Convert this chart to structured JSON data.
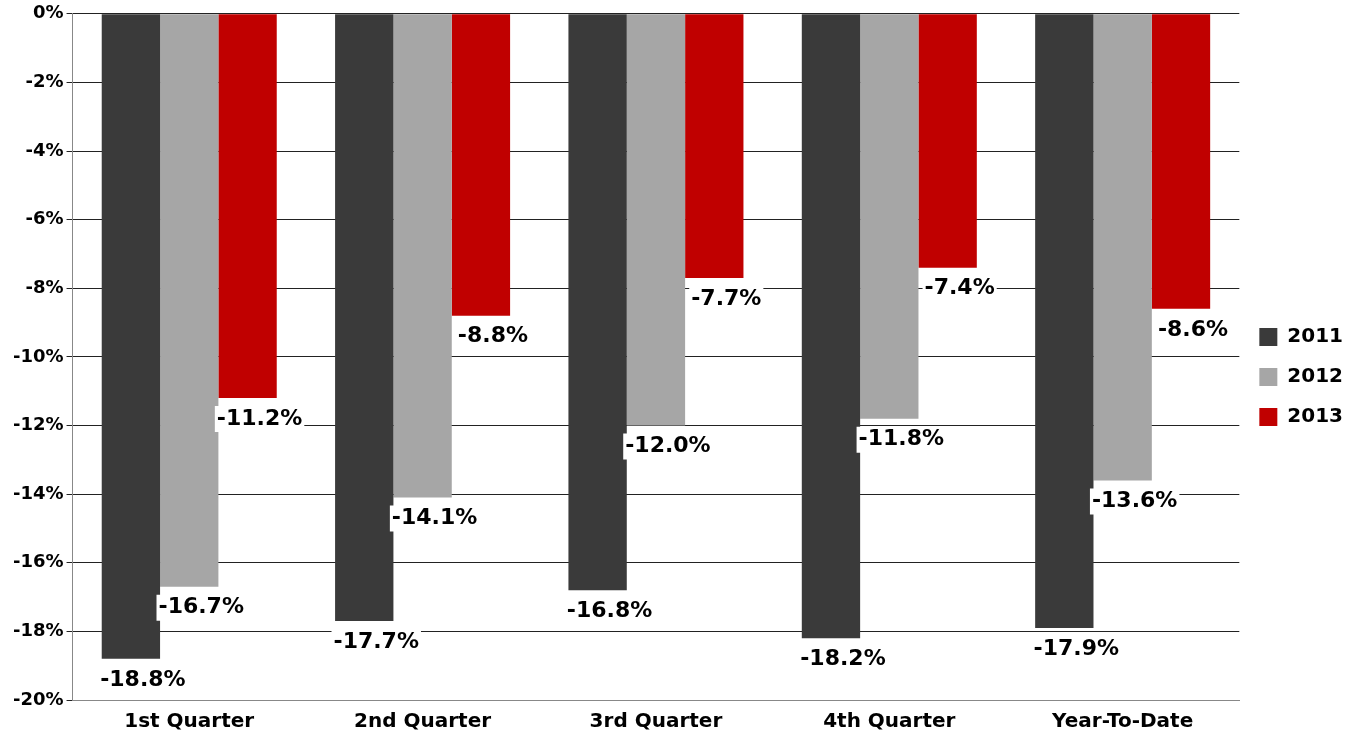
{
  "chart_data": {
    "type": "bar",
    "categories": [
      "1st Quarter",
      "2nd Quarter",
      "3rd Quarter",
      "4th Quarter",
      "Year-To-Date"
    ],
    "series": [
      {
        "name": "2011",
        "color": "#3a3a3a",
        "values": [
          -18.8,
          -17.7,
          -16.8,
          -18.2,
          -17.9
        ],
        "value_labels": [
          "-18.8%",
          "-17.7%",
          "-16.8%",
          "-18.2%",
          "-17.9%"
        ]
      },
      {
        "name": "2012",
        "color": "#a6a6a6",
        "values": [
          -16.7,
          -14.1,
          -12.0,
          -11.8,
          -13.6
        ],
        "value_labels": [
          "-16.7%",
          "-14.1%",
          "-12.0%",
          "-11.8%",
          "-13.6%"
        ]
      },
      {
        "name": "2013",
        "color": "#c00000",
        "values": [
          -11.2,
          -8.8,
          -7.7,
          -7.4,
          -8.6
        ],
        "value_labels": [
          "-11.2%",
          "-8.8%",
          "-7.7%",
          "-7.4%",
          "-8.6%"
        ]
      }
    ],
    "ylim": [
      -20,
      0
    ],
    "yticks": [
      {
        "value": 0,
        "label": "0%"
      },
      {
        "value": -2,
        "label": "-2%"
      },
      {
        "value": -4,
        "label": "-4%"
      },
      {
        "value": -6,
        "label": "-6%"
      },
      {
        "value": -8,
        "label": "-8%"
      },
      {
        "value": -10,
        "label": "-10%"
      },
      {
        "value": -12,
        "label": "-12%"
      },
      {
        "value": -14,
        "label": "-14%"
      },
      {
        "value": -16,
        "label": "-16%"
      },
      {
        "value": -18,
        "label": "-18%"
      },
      {
        "value": -20,
        "label": "-20%"
      }
    ],
    "grid": "y",
    "legend": "right"
  }
}
